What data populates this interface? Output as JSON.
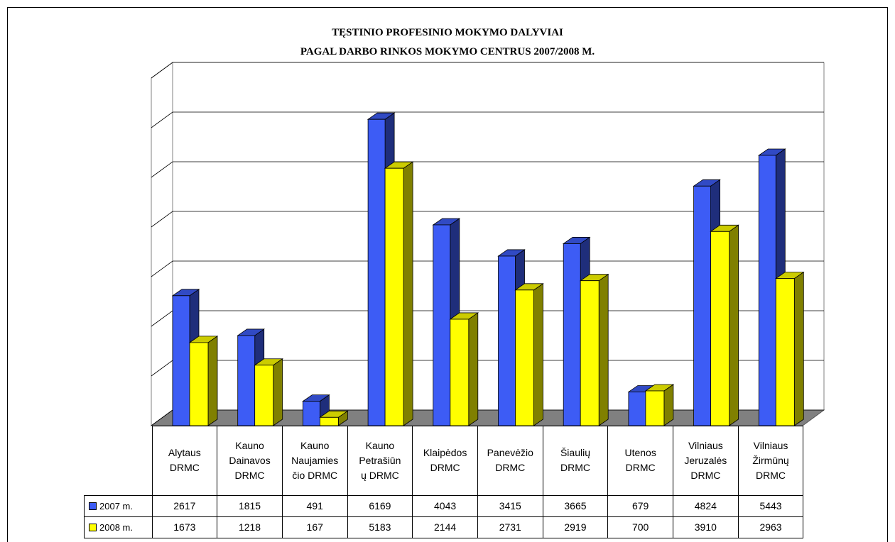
{
  "chart_data": {
    "type": "bar3d",
    "title": "TĘSTINIO PROFESINIO MOKYMO DALYVIAI",
    "subtitle": "PAGAL DARBO RINKOS MOKYMO CENTRUS 2007/2008 M.",
    "categories": [
      "Alytaus\nDRMC",
      "Kauno\nDainavos\nDRMC",
      "Kauno\nNaujamies\nčio DRMC",
      "Kauno\nPetrašiūn\nų DRMC",
      "Klaipėdos\nDRMC",
      "Panevėžio\nDRMC",
      "Šiaulių\nDRMC",
      "Utenos\nDRMC",
      "Vilniaus\nJeruzalės\nDRMC",
      "Vilniaus\nŽirmūnų\nDRMC"
    ],
    "series": [
      {
        "name": "2007 m.",
        "color": "#3d5cf5",
        "values": [
          2617,
          1815,
          491,
          6169,
          4043,
          3415,
          3665,
          679,
          4824,
          5443
        ]
      },
      {
        "name": "2008 m.",
        "color": "#ffff00",
        "values": [
          1673,
          1218,
          167,
          5183,
          2144,
          2731,
          2919,
          700,
          3910,
          2963
        ]
      }
    ],
    "ylim": [
      0,
      7000
    ],
    "yticks": [
      0,
      1000,
      2000,
      3000,
      4000,
      5000,
      6000,
      7000
    ],
    "grid": true
  }
}
